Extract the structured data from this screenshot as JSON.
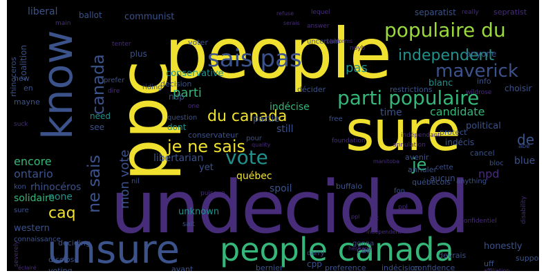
{
  "palette": {
    "yellow": "#f0e130",
    "green": "#35b779",
    "teal": "#21918c",
    "blue": "#3b528b",
    "purple": "#472c7a",
    "dark": "#2c1e54",
    "lime": "#9bd93c"
  },
  "words": [
    {
      "text": "undecided",
      "color": "#472c7a"
    },
    {
      "text": "people",
      "color": "#f0e130"
    },
    {
      "text": "ppc",
      "color": "#f0e130"
    },
    {
      "text": "sure",
      "color": "#f0e130"
    },
    {
      "text": "know",
      "color": "#3b528b"
    },
    {
      "text": "unsure",
      "color": "#3b528b"
    },
    {
      "text": "people canada",
      "color": "#35b779"
    },
    {
      "text": "sais pas",
      "color": "#3b528b"
    },
    {
      "text": "populaire du",
      "color": "#9bd93c"
    },
    {
      "text": "parti populaire",
      "color": "#35b779"
    },
    {
      "text": "independent",
      "color": "#21918c"
    },
    {
      "text": "maverick",
      "color": "#3b528b"
    },
    {
      "text": "du canada",
      "color": "#f0e130"
    },
    {
      "text": "vote",
      "color": "#21918c"
    },
    {
      "text": "je ne sais",
      "color": "#f0e130"
    },
    {
      "text": "ne sais",
      "color": "#3b528b"
    },
    {
      "text": "canada",
      "color": "#3b528b"
    },
    {
      "text": "parti",
      "color": "#35b779"
    },
    {
      "text": "je",
      "color": "#35b779"
    },
    {
      "text": "de",
      "color": "#3b528b"
    },
    {
      "text": "caq",
      "color": "#f0e130"
    },
    {
      "text": "pas",
      "color": "#21918c"
    },
    {
      "text": "mon vote",
      "color": "#3b528b"
    },
    {
      "text": "blue",
      "color": "#3b528b"
    },
    {
      "text": "npd",
      "color": "#472c7a"
    },
    {
      "text": "encore",
      "color": "#35b779"
    },
    {
      "text": "ontario",
      "color": "#3b528b"
    },
    {
      "text": "rhinocéros",
      "color": "#3b528b"
    },
    {
      "text": "libertarian",
      "color": "#3b528b"
    },
    {
      "text": "québec",
      "color": "#f0e130"
    },
    {
      "text": "solidaire",
      "color": "#35b779"
    },
    {
      "text": "none",
      "color": "#21918c"
    },
    {
      "text": "candidate",
      "color": "#35b779"
    },
    {
      "text": "time",
      "color": "#3b528b"
    },
    {
      "text": "indécise",
      "color": "#35b779"
    },
    {
      "text": "partie",
      "color": "#3b528b"
    },
    {
      "text": "still",
      "color": "#3b528b"
    },
    {
      "text": "liberal",
      "color": "#3b528b"
    },
    {
      "text": "communist",
      "color": "#3b528b"
    },
    {
      "text": "conservative",
      "color": "#21918c"
    },
    {
      "text": "blanc",
      "color": "#21918c"
    },
    {
      "text": "anyone",
      "color": "#3b528b"
    },
    {
      "text": "spoil",
      "color": "#3b528b"
    },
    {
      "text": "unknown",
      "color": "#21918c"
    },
    {
      "text": "western",
      "color": "#3b528b"
    },
    {
      "text": "honestly",
      "color": "#3b528b"
    },
    {
      "text": "dont",
      "color": "#21918c"
    },
    {
      "text": "yet",
      "color": "#3b528b"
    },
    {
      "text": "ndp",
      "color": "#3b528b"
    },
    {
      "text": "need",
      "color": "#21918c"
    },
    {
      "text": "see",
      "color": "#3b528b"
    },
    {
      "text": "political",
      "color": "#3b528b"
    },
    {
      "text": "indécis",
      "color": "#3b528b"
    },
    {
      "text": "aucun",
      "color": "#3b528b"
    },
    {
      "text": "choisir",
      "color": "#3b528b"
    },
    {
      "text": "separatist",
      "color": "#3b528b"
    },
    {
      "text": "coalition",
      "color": "#3b528b"
    },
    {
      "text": "ballot",
      "color": "#3b528b"
    },
    {
      "text": "plus",
      "color": "#3b528b"
    },
    {
      "text": "decision",
      "color": "#3b528b"
    },
    {
      "text": "restrictions",
      "color": "#3b528b"
    },
    {
      "text": "décider",
      "color": "#3b528b"
    },
    {
      "text": "bernier",
      "color": "#3b528b"
    },
    {
      "text": "cas",
      "color": "#3b528b"
    },
    {
      "text": "buffalo",
      "color": "#3b528b"
    },
    {
      "text": "cpp",
      "color": "#3b528b"
    },
    {
      "text": "indécision",
      "color": "#3b528b"
    },
    {
      "text": "support",
      "color": "#3b528b"
    },
    {
      "text": "avant",
      "color": "#3b528b"
    },
    {
      "text": "voting",
      "color": "#3b528b"
    },
    {
      "text": "disclose",
      "color": "#3b528b"
    },
    {
      "text": "new",
      "color": "#3b528b"
    },
    {
      "text": "en",
      "color": "#3b528b"
    },
    {
      "text": "sepratist",
      "color": "#472c7a"
    },
    {
      "text": "rhinoceros",
      "color": "#3b528b"
    },
    {
      "text": "mayne",
      "color": "#3b528b"
    },
    {
      "text": "annuler",
      "color": "#3b528b"
    },
    {
      "text": "québécois",
      "color": "#3b528b"
    },
    {
      "text": "confidence",
      "color": "#3b528b"
    },
    {
      "text": "preference",
      "color": "#3b528b"
    },
    {
      "text": "uff",
      "color": "#3b528b"
    },
    {
      "text": "info",
      "color": "#3b528b"
    },
    {
      "text": "avenir",
      "color": "#3b528b"
    },
    {
      "text": "cancel",
      "color": "#3b528b"
    },
    {
      "text": "abe",
      "color": "#3b528b"
    },
    {
      "text": "protect",
      "color": "#3b528b"
    },
    {
      "text": "conservateur",
      "color": "#3b528b"
    },
    {
      "text": "voter",
      "color": "#3b528b"
    },
    {
      "text": "riding",
      "color": "#3b528b"
    },
    {
      "text": "prefer",
      "color": "#3b528b"
    },
    {
      "text": "deciding",
      "color": "#3b528b"
    },
    {
      "text": "connaissance",
      "color": "#3b528b"
    },
    {
      "text": "kon",
      "color": "#3b528b"
    },
    {
      "text": "sure",
      "color": "#3b528b"
    },
    {
      "text": "anything",
      "color": "#3b528b"
    },
    {
      "text": "nil",
      "color": "#3b528b"
    },
    {
      "text": "cette",
      "color": "#3b528b"
    },
    {
      "text": "bloc",
      "color": "#3b528b"
    },
    {
      "text": "fon",
      "color": "#3b528b"
    },
    {
      "text": "question",
      "color": "#3b528b"
    },
    {
      "text": "salt",
      "color": "#3b528b"
    },
    {
      "text": "carry",
      "color": "#3b528b"
    },
    {
      "text": "devrais",
      "color": "#3b528b"
    },
    {
      "text": "free",
      "color": "#3b528b"
    },
    {
      "text": "pour",
      "color": "#3b528b"
    },
    {
      "text": "uncertain",
      "color": "#3b528b"
    },
    {
      "text": "gonna",
      "color": "#3b528b"
    },
    {
      "text": "severely",
      "color": "#472c7a"
    },
    {
      "text": "ppl",
      "color": "#472c7a"
    },
    {
      "text": "platforms",
      "color": "#472c7a"
    },
    {
      "text": "tenter",
      "color": "#472c7a"
    },
    {
      "text": "main",
      "color": "#472c7a"
    },
    {
      "text": "lequel",
      "color": "#472c7a"
    },
    {
      "text": "really",
      "color": "#472c7a"
    },
    {
      "text": "refuse",
      "color": "#472c7a"
    },
    {
      "text": "answer",
      "color": "#472c7a"
    },
    {
      "text": "noyb",
      "color": "#472c7a"
    },
    {
      "text": "quality",
      "color": "#472c7a"
    },
    {
      "text": "foundation",
      "color": "#472c7a"
    },
    {
      "text": "wildrose",
      "color": "#472c7a"
    },
    {
      "text": "annulation",
      "color": "#472c7a"
    },
    {
      "text": "indépendant",
      "color": "#472c7a"
    },
    {
      "text": "disability",
      "color": "#472c7a"
    },
    {
      "text": "puisque",
      "color": "#472c7a"
    },
    {
      "text": "confidentiel",
      "color": "#472c7a"
    },
    {
      "text": "heritage",
      "color": "#472c7a"
    },
    {
      "text": "independent",
      "color": "#472c7a"
    },
    {
      "text": "ppl",
      "color": "#472c7a"
    },
    {
      "text": "ask",
      "color": "#472c7a"
    },
    {
      "text": "one",
      "color": "#472c7a"
    },
    {
      "text": "dire",
      "color": "#472c7a"
    },
    {
      "text": "suck",
      "color": "#472c7a"
    },
    {
      "text": "serais",
      "color": "#472c7a"
    },
    {
      "text": "manitoba",
      "color": "#472c7a"
    },
    {
      "text": "affiliation",
      "color": "#472c7a"
    },
    {
      "text": "éclairé",
      "color": "#472c7a"
    },
    {
      "text": "ye",
      "color": "#472c7a"
    }
  ]
}
